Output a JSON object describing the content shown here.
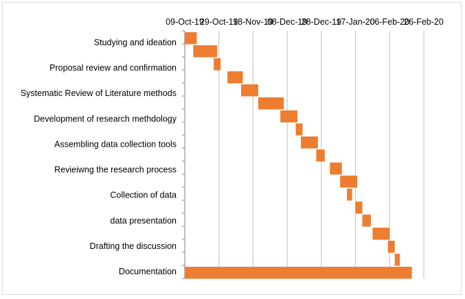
{
  "chart_data": {
    "type": "bar",
    "subtype": "gantt",
    "title": "",
    "xlabel": "",
    "ylabel": "",
    "x_axis_position": "top",
    "x_axis_type": "date",
    "xlim": [
      "2019-10-09",
      "2020-02-26"
    ],
    "x_ticks": [
      "09-Oct-19",
      "29-Oct-19",
      "18-Nov-19",
      "08-Dec-19",
      "28-Dec-19",
      "17-Jan-20",
      "06-Feb-20",
      "26-Feb-20"
    ],
    "x_tick_dates": [
      "2019-10-09",
      "2019-10-29",
      "2019-11-18",
      "2019-12-08",
      "2019-12-28",
      "2020-01-17",
      "2020-02-06",
      "2020-02-26"
    ],
    "grid": "vertical",
    "legend": "none",
    "bar_color": "#ED7D31",
    "category_labels": [
      "Studying and ideation",
      "Proposal  review and confirmation",
      "Systematic Review of Literature methods",
      "Development of research methdology",
      "Assembling data collection tools",
      "Revieiwng the research process",
      "Collection of data",
      "data  presentation",
      "Drafting the discussion",
      "Documentation"
    ],
    "tasks": [
      {
        "start": "2019-10-09",
        "end": "2019-10-16"
      },
      {
        "start": "2019-10-14",
        "end": "2019-10-28"
      },
      {
        "start": "2019-10-26",
        "end": "2019-10-30"
      },
      {
        "start": "2019-11-03",
        "end": "2019-11-12"
      },
      {
        "start": "2019-11-11",
        "end": "2019-11-21"
      },
      {
        "start": "2019-11-21",
        "end": "2019-12-06"
      },
      {
        "start": "2019-12-04",
        "end": "2019-12-14"
      },
      {
        "start": "2019-12-13",
        "end": "2019-12-17"
      },
      {
        "start": "2019-12-16",
        "end": "2019-12-26"
      },
      {
        "start": "2019-12-25",
        "end": "2019-12-30"
      },
      {
        "start": "2020-01-02",
        "end": "2020-01-09"
      },
      {
        "start": "2020-01-08",
        "end": "2020-01-18"
      },
      {
        "start": "2020-01-12",
        "end": "2020-01-15"
      },
      {
        "start": "2020-01-17",
        "end": "2020-01-21"
      },
      {
        "start": "2020-01-21",
        "end": "2020-01-26"
      },
      {
        "start": "2020-01-27",
        "end": "2020-02-06"
      },
      {
        "start": "2020-02-05",
        "end": "2020-02-09"
      },
      {
        "start": "2020-02-09",
        "end": "2020-02-12"
      },
      {
        "start": "2019-10-09",
        "end": "2020-02-19"
      }
    ]
  }
}
